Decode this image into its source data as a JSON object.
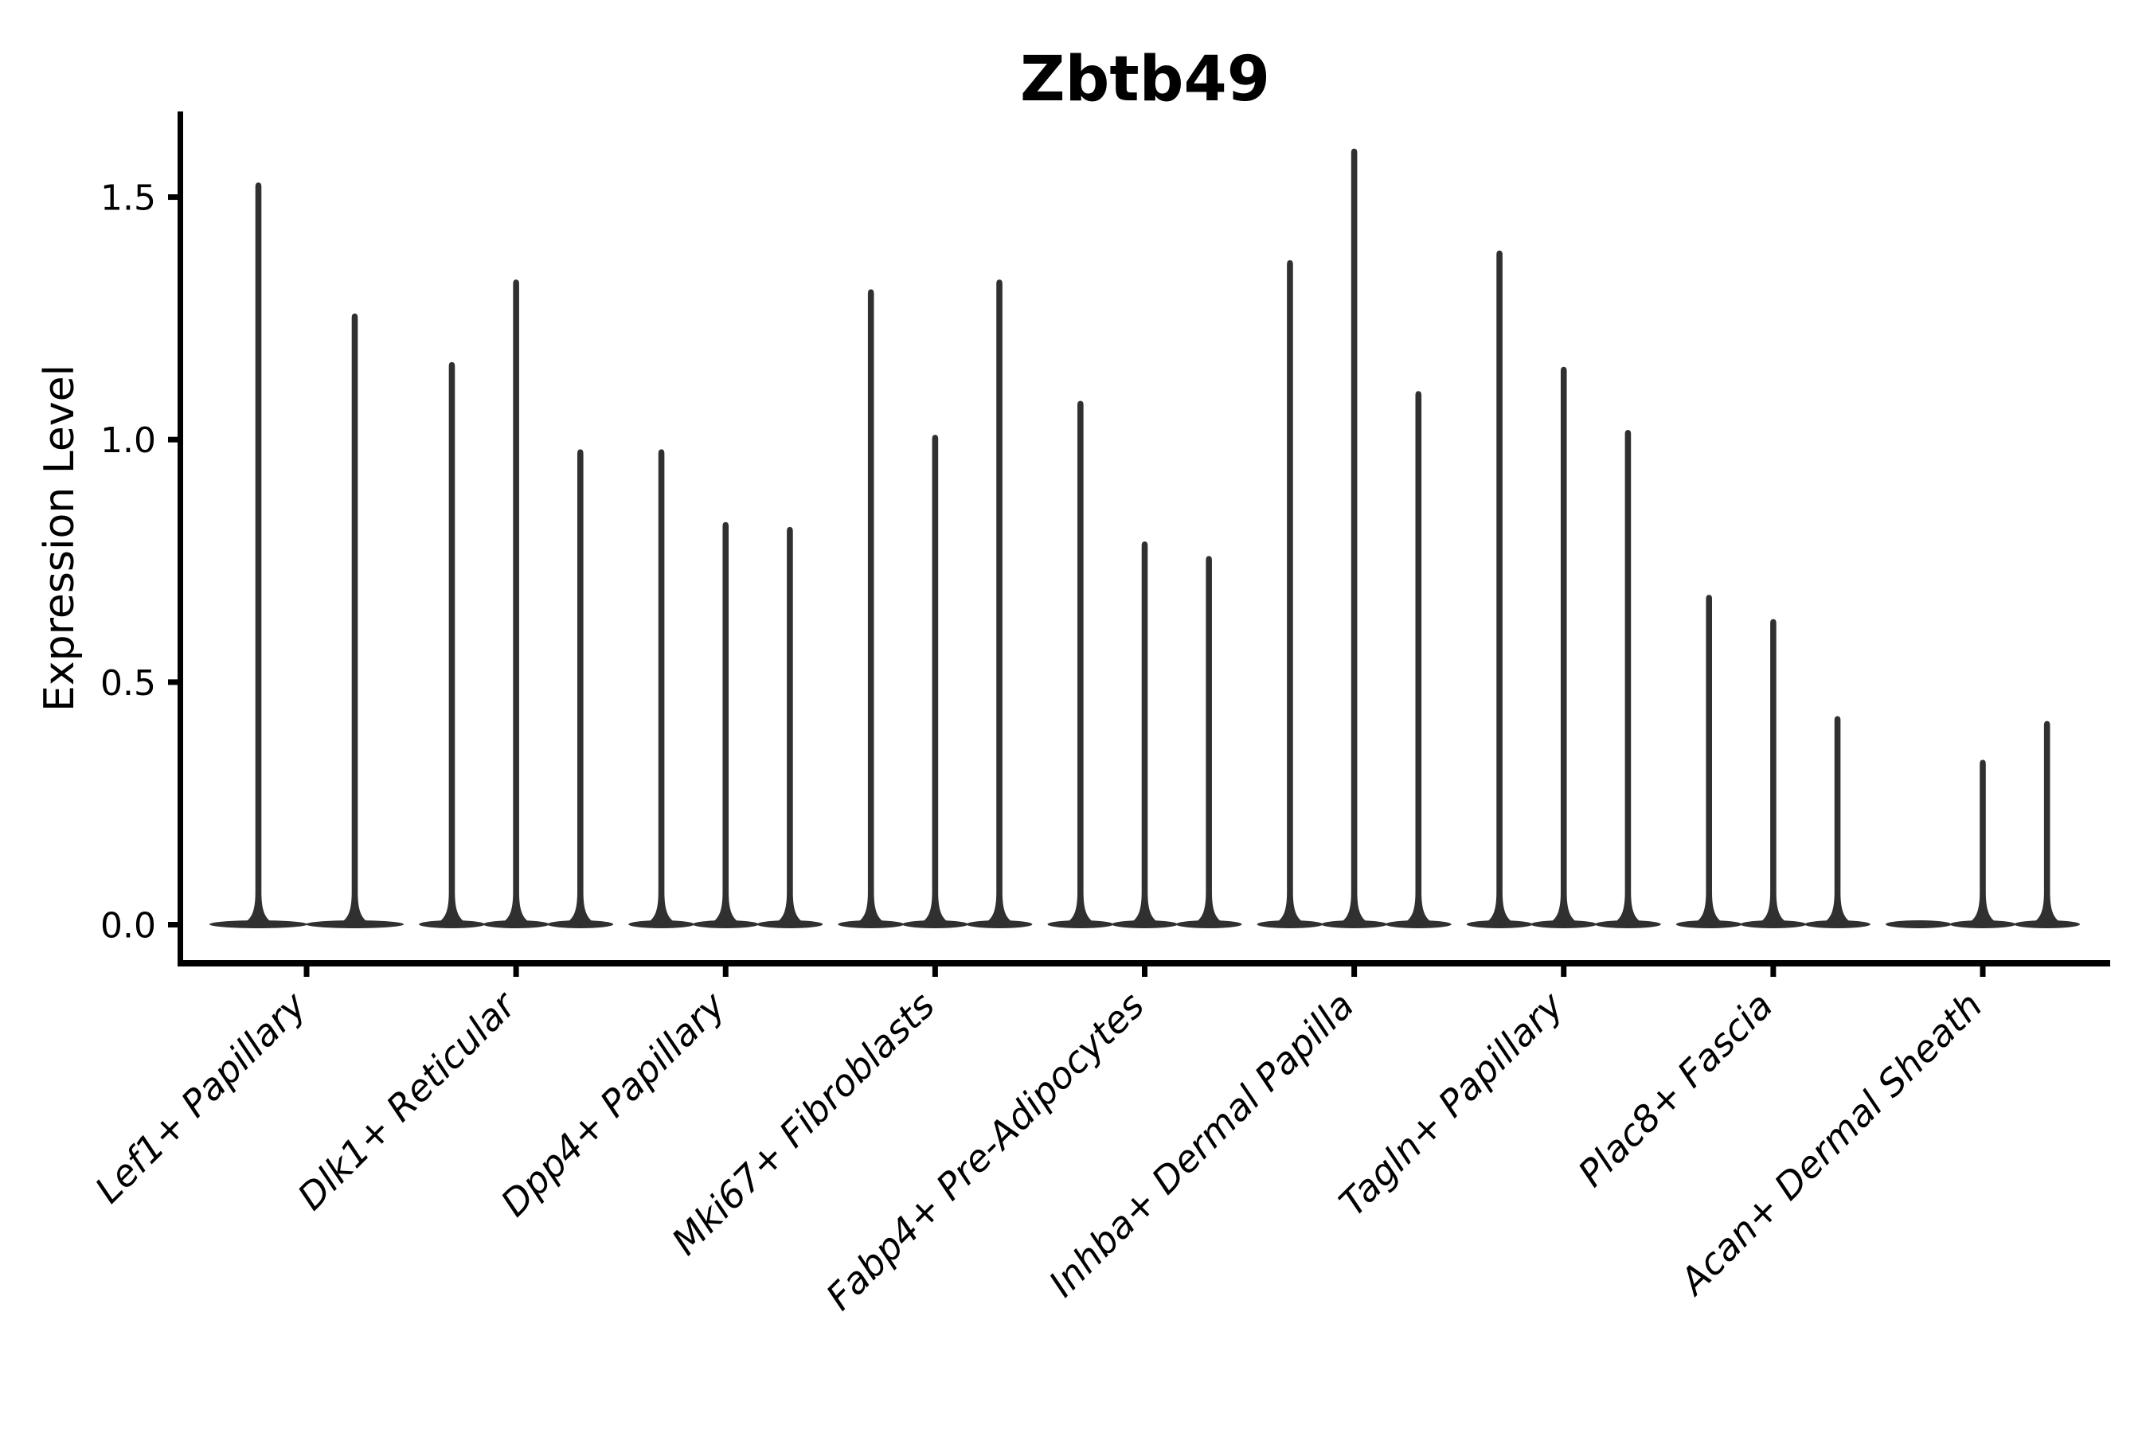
{
  "chart_data": {
    "type": "violin",
    "title": "Zbtb49",
    "ylabel": "Expression Level",
    "xlabel": "",
    "yticks": [
      0.0,
      0.5,
      1.0,
      1.5
    ],
    "ylim": [
      -0.08,
      1.68
    ],
    "grid": false,
    "legend": null,
    "groups": [
      {
        "category": "Lef1+ Papillary",
        "violin_maxima": [
          1.53,
          1.26
        ]
      },
      {
        "category": "Dlk1+ Reticular",
        "violin_maxima": [
          1.16,
          1.33,
          0.98
        ]
      },
      {
        "category": "Dpp4+ Papillary",
        "violin_maxima": [
          0.98,
          0.83,
          0.82
        ]
      },
      {
        "category": "Mki67+ Fibroblasts",
        "violin_maxima": [
          1.31,
          1.01,
          1.33
        ]
      },
      {
        "category": "Fabp4+ Pre-Adipocytes",
        "violin_maxima": [
          1.08,
          0.79,
          0.76
        ]
      },
      {
        "category": "Inhba+ Dermal Papilla",
        "violin_maxima": [
          1.37,
          1.6,
          1.1
        ]
      },
      {
        "category": "Tagln+ Papillary",
        "violin_maxima": [
          1.39,
          1.15,
          1.02
        ]
      },
      {
        "category": "Plac8+ Fascia",
        "violin_maxima": [
          0.68,
          0.63,
          0.43
        ]
      },
      {
        "category": "Acan+ Dermal Sheath",
        "violin_maxima": [
          0.0,
          0.34,
          0.42
        ]
      }
    ],
    "colors": {
      "violin": "#303030",
      "axis": "#000000",
      "text": "#000000",
      "background": "#ffffff"
    }
  }
}
